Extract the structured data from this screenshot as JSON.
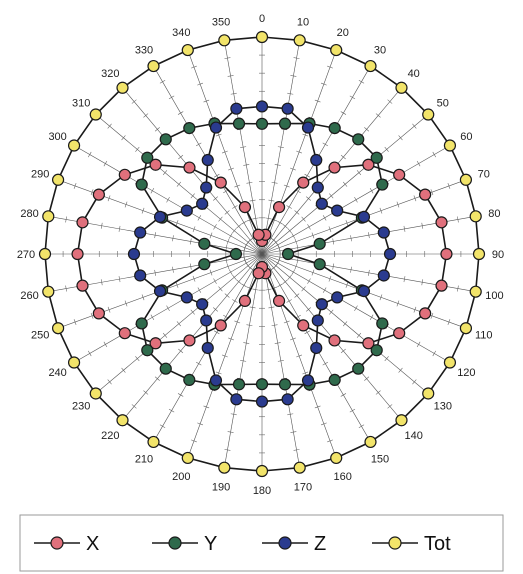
{
  "chart_data": {
    "type": "polar",
    "angle_labels": [
      "0",
      "10",
      "20",
      "30",
      "40",
      "50",
      "60",
      "70",
      "80",
      "90",
      "100",
      "110",
      "120",
      "130",
      "140",
      "150",
      "160",
      "170",
      "180",
      "190",
      "200",
      "210",
      "220",
      "230",
      "240",
      "250",
      "260",
      "270",
      "280",
      "290",
      "300",
      "310",
      "320",
      "330",
      "340",
      "350"
    ],
    "angles": [
      0,
      10,
      20,
      30,
      40,
      50,
      60,
      70,
      80,
      90,
      100,
      110,
      120,
      130,
      140,
      150,
      160,
      170,
      180,
      190,
      200,
      210,
      220,
      230,
      240,
      250,
      260,
      270,
      280,
      290,
      300,
      310,
      320,
      330,
      340,
      350
    ],
    "rmax": 1.0,
    "radial_gridlines": true,
    "legend_position": "bottom",
    "series": [
      {
        "name": "X",
        "color": "#e0707c",
        "values": [
          0.06,
          0.09,
          0.23,
          0.38,
          0.52,
          0.64,
          0.73,
          0.8,
          0.84,
          0.85,
          0.84,
          0.8,
          0.73,
          0.64,
          0.52,
          0.38,
          0.23,
          0.09,
          0.06,
          0.09,
          0.23,
          0.38,
          0.52,
          0.64,
          0.73,
          0.8,
          0.84,
          0.85,
          0.84,
          0.8,
          0.73,
          0.64,
          0.52,
          0.38,
          0.23,
          0.09
        ]
      },
      {
        "name": "Y",
        "color": "#2f6a4c",
        "values": [
          0.6,
          0.61,
          0.64,
          0.67,
          0.69,
          0.69,
          0.64,
          0.49,
          0.27,
          0.12,
          0.27,
          0.49,
          0.64,
          0.69,
          0.69,
          0.67,
          0.64,
          0.61,
          0.6,
          0.61,
          0.64,
          0.67,
          0.69,
          0.69,
          0.64,
          0.49,
          0.27,
          0.12,
          0.27,
          0.49,
          0.64,
          0.69,
          0.69,
          0.67,
          0.64,
          0.61
        ]
      },
      {
        "name": "Z",
        "color": "#2a3b8f",
        "values": [
          0.68,
          0.68,
          0.62,
          0.5,
          0.4,
          0.36,
          0.4,
          0.5,
          0.57,
          0.59,
          0.57,
          0.5,
          0.4,
          0.36,
          0.4,
          0.5,
          0.62,
          0.68,
          0.68,
          0.68,
          0.62,
          0.5,
          0.4,
          0.36,
          0.4,
          0.5,
          0.57,
          0.59,
          0.57,
          0.5,
          0.4,
          0.36,
          0.4,
          0.5,
          0.62,
          0.68
        ]
      },
      {
        "name": "Tot",
        "color": "#f2e46a",
        "values": [
          1,
          1,
          1,
          1,
          1,
          1,
          1,
          1,
          1,
          1,
          1,
          1,
          1,
          1,
          1,
          1,
          1,
          1,
          1,
          1,
          1,
          1,
          1,
          1,
          1,
          1,
          1,
          1,
          1,
          1,
          1,
          1,
          1,
          1,
          1,
          1
        ]
      }
    ]
  }
}
